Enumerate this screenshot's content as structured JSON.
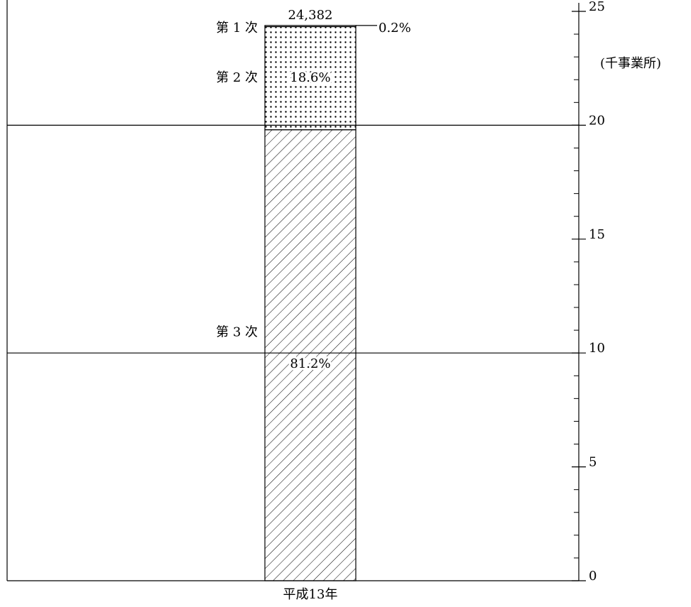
{
  "chart_data": {
    "type": "stacked-bar",
    "categories": [
      "平成13年"
    ],
    "series": [
      {
        "name": "第 3 次",
        "values": [
          19.8
        ],
        "share_labels": [
          "81.2%"
        ],
        "pattern": "hatch",
        "color": "#000000"
      },
      {
        "name": "第 2 次",
        "values": [
          4.53
        ],
        "share_labels": [
          "18.6%"
        ],
        "pattern": "dots",
        "color": "#000000"
      },
      {
        "name": "第 1 次",
        "values": [
          0.05
        ],
        "share_labels": [
          "0.2%"
        ],
        "pattern": "none",
        "color": "#000000"
      }
    ],
    "total": {
      "value": 24.382,
      "label": "24,382"
    },
    "y_unit_label": "(千事業所)",
    "ylim": [
      0,
      25
    ],
    "yticks": [
      0,
      5,
      10,
      15,
      20,
      25
    ],
    "yminor_ticks": [
      1,
      2,
      3,
      4,
      6,
      7,
      8,
      9,
      11,
      12,
      13,
      14,
      16,
      17,
      18,
      19,
      21,
      22,
      23,
      24
    ],
    "gridlines": [
      10,
      20
    ],
    "y_axis_side": "right"
  }
}
